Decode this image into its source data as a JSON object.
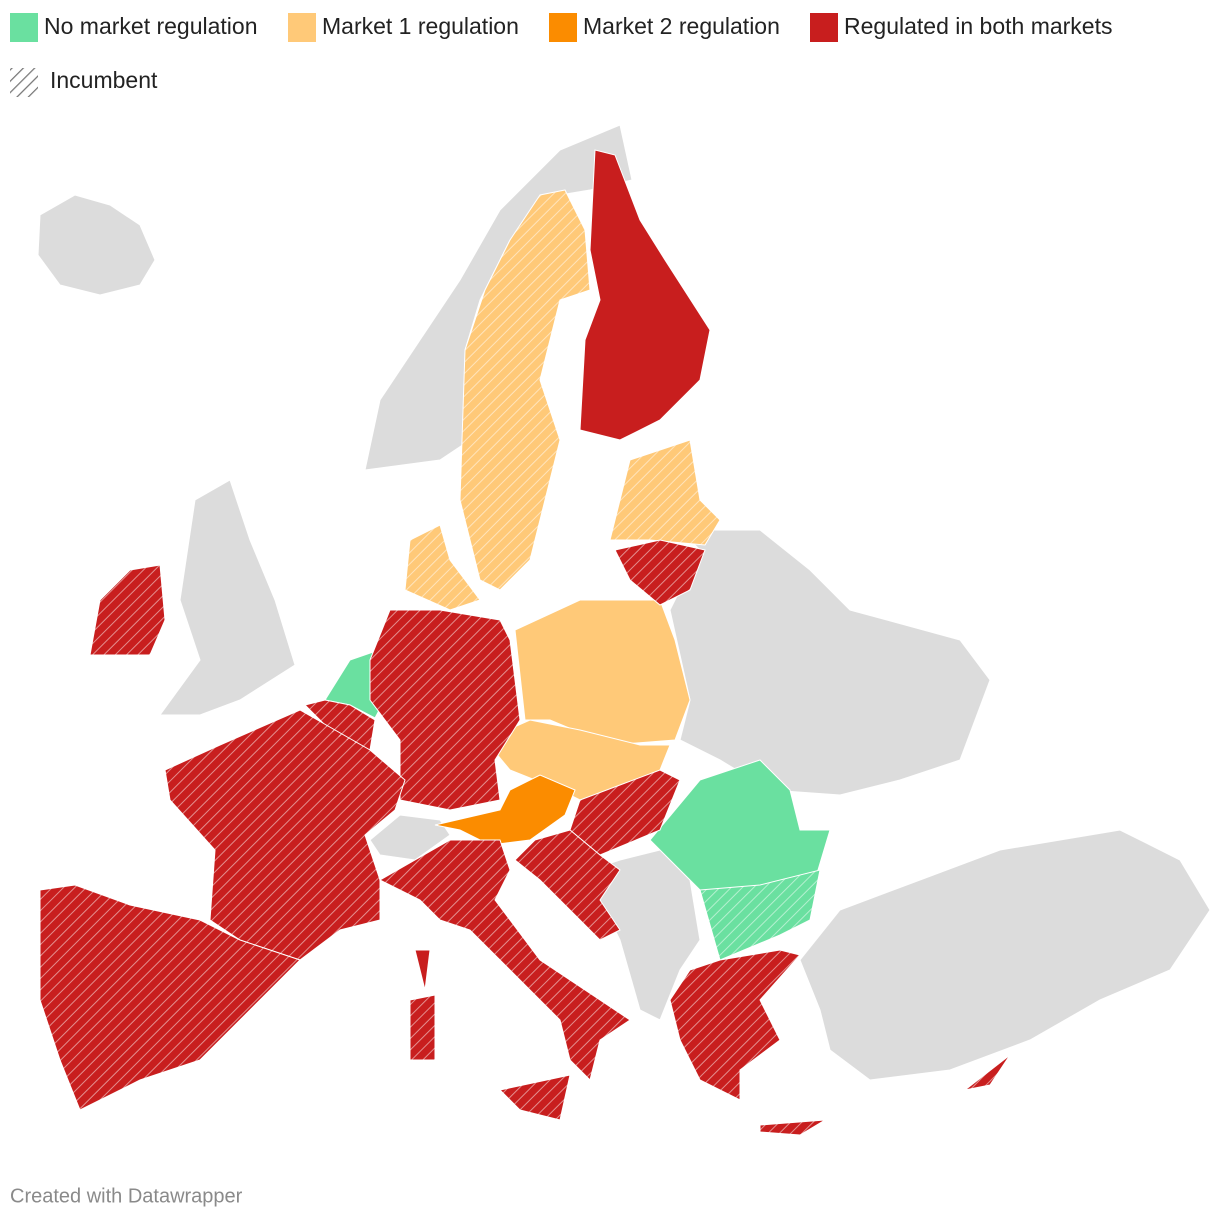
{
  "legend": [
    {
      "label": "No market regulation",
      "color": "#6ae0a0"
    },
    {
      "label": "Market 1 regulation",
      "color": "#ffc978"
    },
    {
      "label": "Market 2 regulation",
      "color": "#fb8c00"
    },
    {
      "label": "Regulated in both markets",
      "color": "#c81e1e"
    }
  ],
  "pattern_legend": {
    "label": "Incumbent"
  },
  "footer": "Created with Datawrapper"
}
